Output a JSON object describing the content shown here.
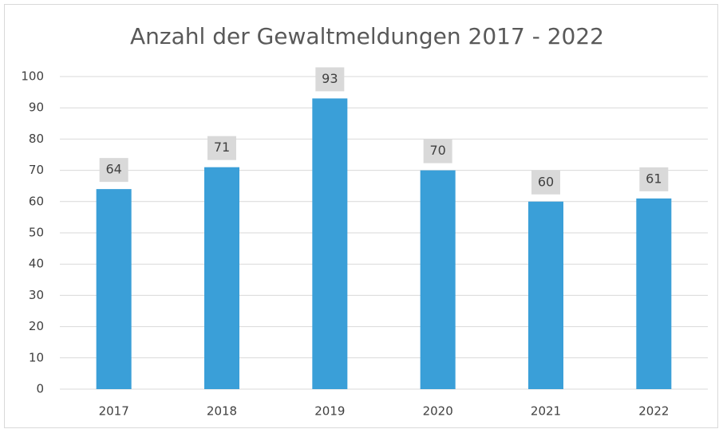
{
  "chart_data": {
    "type": "bar",
    "title": "Anzahl der Gewaltmeldungen 2017 - 2022",
    "categories": [
      "2017",
      "2018",
      "2019",
      "2020",
      "2021",
      "2022"
    ],
    "values": [
      64,
      71,
      93,
      70,
      60,
      61
    ],
    "color": "#3a9fd8",
    "ylim": [
      0,
      100
    ],
    "yticks": [
      0,
      10,
      20,
      30,
      40,
      50,
      60,
      70,
      80,
      90,
      100
    ],
    "grid": true
  }
}
